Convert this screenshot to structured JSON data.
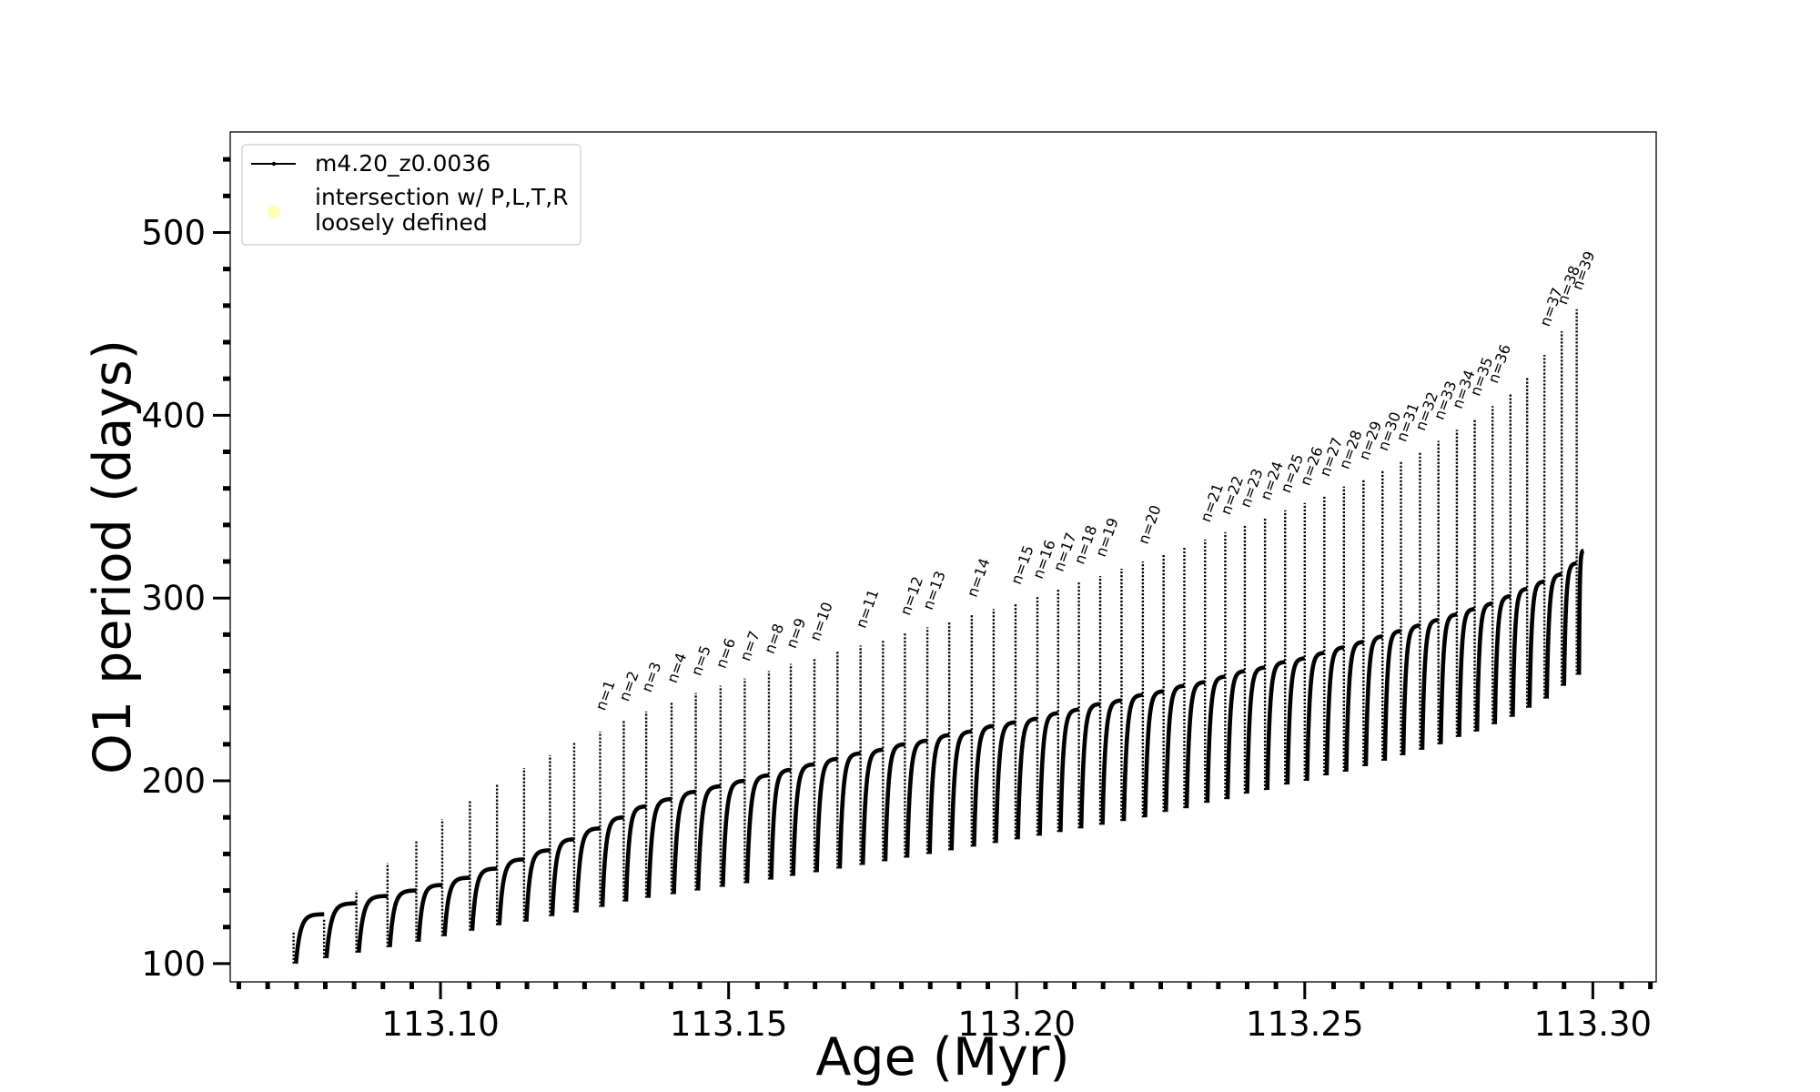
{
  "chart_data": {
    "type": "line",
    "title": "",
    "xlabel": "Age (Myr)",
    "ylabel": "O1 period (days)",
    "xlim": [
      113.0635,
      113.311
    ],
    "ylim": [
      90,
      555
    ],
    "x_ticks": [
      113.1,
      113.15,
      113.2,
      113.25,
      113.3
    ],
    "x_tick_labels": [
      "113.10",
      "113.15",
      "113.20",
      "113.25",
      "113.30"
    ],
    "y_ticks": [
      100,
      200,
      300,
      400,
      500
    ],
    "y_tick_labels": [
      "100",
      "200",
      "300",
      "400",
      "500"
    ],
    "grid": false,
    "legend_position": "upper-left",
    "series": [
      {
        "name": "m4.20_z0.0036",
        "color": "#000000",
        "marker": "dot"
      }
    ],
    "legend_extra": {
      "label": "intersection w/ P,L,T,R\nloosely defined",
      "color": "#ffffb0"
    },
    "pulse_cycles": {
      "start_ages": [
        113.0745,
        113.0798,
        113.0854,
        113.0908,
        113.0958,
        113.1003,
        113.1051,
        113.1098,
        113.1145,
        113.119,
        113.1232,
        113.1277,
        113.1318,
        113.1357,
        113.1401,
        113.1443,
        113.1486,
        113.1528,
        113.157,
        113.1608,
        113.1649,
        113.1689,
        113.1729,
        113.1768,
        113.1806,
        113.1845,
        113.1883,
        113.1922,
        113.196,
        113.1998,
        113.2036,
        113.2072,
        113.2108,
        113.2145,
        113.2182,
        113.2219,
        113.2255,
        113.2291,
        113.2327,
        113.2362,
        113.2396,
        113.2431,
        113.2466,
        113.25,
        113.2534,
        113.2568,
        113.2602,
        113.2635,
        113.2667,
        113.27,
        113.2732,
        113.2764,
        113.2795,
        113.2826,
        113.2857,
        113.2886,
        113.2916,
        113.2946,
        113.2972
      ],
      "min_periods": [
        100,
        103,
        106,
        109,
        112,
        115,
        118,
        121,
        123,
        126,
        128,
        131,
        134,
        136,
        138,
        140,
        142,
        144,
        146,
        148,
        150,
        152,
        154,
        156,
        158,
        160,
        162,
        164,
        166,
        168,
        170,
        172,
        174,
        176,
        178,
        180,
        183,
        185,
        188,
        190,
        193,
        195,
        198,
        200,
        203,
        205,
        208,
        211,
        214,
        217,
        220,
        224,
        227,
        231,
        235,
        240,
        245,
        252,
        258
      ],
      "spike_periods": [
        118,
        125,
        140,
        155,
        167,
        179,
        189,
        198,
        207,
        214,
        221,
        227,
        233,
        238,
        243,
        248,
        252,
        256,
        260,
        264,
        267,
        271,
        274,
        277,
        281,
        284,
        287,
        291,
        294,
        297,
        301,
        305,
        309,
        312,
        316,
        320,
        324,
        328,
        332,
        336,
        340,
        344,
        348,
        352,
        356,
        361,
        365,
        370,
        375,
        380,
        386,
        392,
        398,
        405,
        412,
        421,
        433,
        446,
        458
      ],
      "max_periods": [
        127,
        133,
        137,
        140,
        143,
        147,
        152,
        157,
        162,
        168,
        174,
        180,
        186,
        190,
        194,
        197,
        200,
        203,
        206,
        209,
        212,
        215,
        217,
        220,
        222,
        225,
        227,
        230,
        232,
        234,
        237,
        239,
        242,
        244,
        247,
        249,
        252,
        254,
        257,
        260,
        262,
        265,
        267,
        270,
        273,
        276,
        279,
        282,
        285,
        288,
        291,
        294,
        297,
        301,
        305,
        309,
        313,
        319,
        326
      ]
    },
    "final_point": {
      "x": 113.2984,
      "y": 333
    },
    "annotations": [
      {
        "label": "n=1",
        "x": 113.1277,
        "y": 236
      },
      {
        "label": "n=2",
        "x": 113.1318,
        "y": 241
      },
      {
        "label": "n=3",
        "x": 113.1357,
        "y": 246
      },
      {
        "label": "n=4",
        "x": 113.1401,
        "y": 251
      },
      {
        "label": "n=5",
        "x": 113.1443,
        "y": 255
      },
      {
        "label": "n=6",
        "x": 113.1486,
        "y": 259
      },
      {
        "label": "n=7",
        "x": 113.1528,
        "y": 263
      },
      {
        "label": "n=8",
        "x": 113.157,
        "y": 267
      },
      {
        "label": "n=9",
        "x": 113.1608,
        "y": 270
      },
      {
        "label": "n=10",
        "x": 113.1649,
        "y": 274
      },
      {
        "label": "n=11",
        "x": 113.1729,
        "y": 281
      },
      {
        "label": "n=12",
        "x": 113.1806,
        "y": 288
      },
      {
        "label": "n=13",
        "x": 113.1845,
        "y": 291
      },
      {
        "label": "n=14",
        "x": 113.1922,
        "y": 298
      },
      {
        "label": "n=15",
        "x": 113.1998,
        "y": 305
      },
      {
        "label": "n=16",
        "x": 113.2036,
        "y": 308
      },
      {
        "label": "n=17",
        "x": 113.2072,
        "y": 312
      },
      {
        "label": "n=18",
        "x": 113.2108,
        "y": 316
      },
      {
        "label": "n=19",
        "x": 113.2145,
        "y": 320
      },
      {
        "label": "n=20",
        "x": 113.2219,
        "y": 327
      },
      {
        "label": "n=21",
        "x": 113.2327,
        "y": 339
      },
      {
        "label": "n=22",
        "x": 113.2362,
        "y": 343
      },
      {
        "label": "n=23",
        "x": 113.2396,
        "y": 347
      },
      {
        "label": "n=24",
        "x": 113.2431,
        "y": 351
      },
      {
        "label": "n=25",
        "x": 113.2466,
        "y": 355
      },
      {
        "label": "n=26",
        "x": 113.25,
        "y": 359
      },
      {
        "label": "n=27",
        "x": 113.2534,
        "y": 364
      },
      {
        "label": "n=28",
        "x": 113.2568,
        "y": 368
      },
      {
        "label": "n=29",
        "x": 113.2602,
        "y": 373
      },
      {
        "label": "n=30",
        "x": 113.2635,
        "y": 378
      },
      {
        "label": "n=31",
        "x": 113.2667,
        "y": 383
      },
      {
        "label": "n=32",
        "x": 113.27,
        "y": 389
      },
      {
        "label": "n=33",
        "x": 113.2732,
        "y": 395
      },
      {
        "label": "n=34",
        "x": 113.2764,
        "y": 401
      },
      {
        "label": "n=35",
        "x": 113.2795,
        "y": 408
      },
      {
        "label": "n=36",
        "x": 113.2826,
        "y": 415
      },
      {
        "label": "n=37",
        "x": 113.2916,
        "y": 446
      },
      {
        "label": "n=38",
        "x": 113.2946,
        "y": 458
      },
      {
        "label": "n=39",
        "x": 113.2972,
        "y": 466
      }
    ]
  }
}
